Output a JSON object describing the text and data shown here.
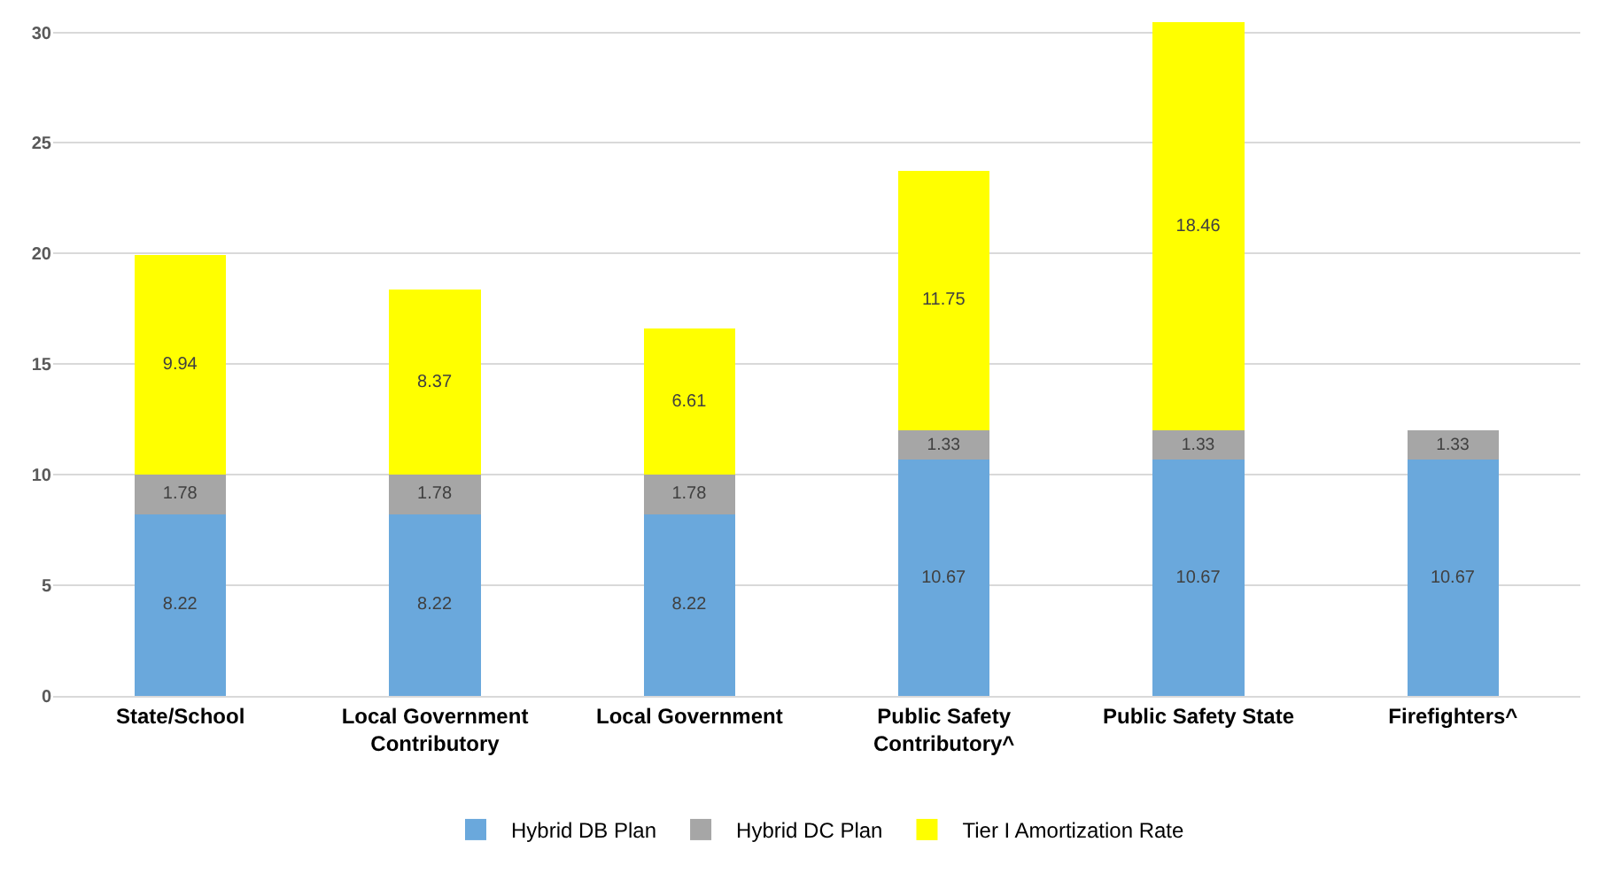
{
  "chart_data": {
    "type": "bar",
    "stacked": true,
    "categories": [
      "State/School",
      "Local Government Contributory",
      "Local Government",
      "Public Safety Contributory^",
      "Public Safety State",
      "Firefighters^"
    ],
    "series": [
      {
        "name": "Hybrid DB Plan",
        "color": "#6aa8dc",
        "values": [
          8.22,
          8.22,
          8.22,
          10.67,
          10.67,
          10.67
        ]
      },
      {
        "name": "Hybrid DC Plan",
        "color": "#a6a6a6",
        "values": [
          1.78,
          1.78,
          1.78,
          1.33,
          1.33,
          1.33
        ]
      },
      {
        "name": "Tier I Amortization Rate",
        "color": "#ffff00",
        "values": [
          9.94,
          8.37,
          6.61,
          11.75,
          18.46,
          null
        ]
      }
    ],
    "ylim": [
      0,
      30.5
    ],
    "yticks": [
      0,
      5,
      10,
      15,
      20,
      25,
      30
    ],
    "grid": "y",
    "legend": "bottom",
    "data_labels": true
  }
}
